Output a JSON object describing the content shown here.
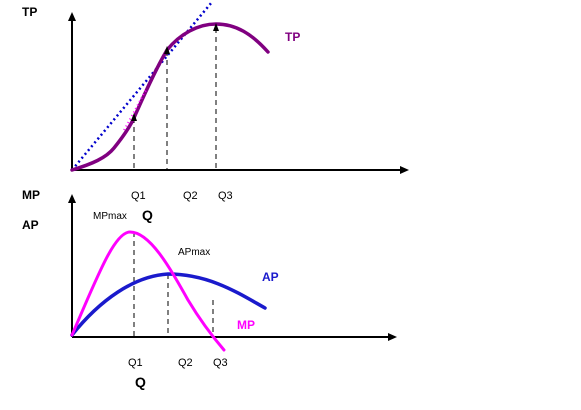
{
  "top_panel": {
    "y_axis_label": "TP",
    "curve_label": "TP",
    "tick_labels": [
      "Q1",
      "Q2",
      "Q3"
    ],
    "axis_label": "Q"
  },
  "bottom_panel": {
    "y_axis_label_1": "MP",
    "y_axis_label_2": "AP",
    "mp_max_label": "MPmax",
    "ap_max_label": "APmax",
    "ap_curve_label": "AP",
    "mp_curve_label": "MP",
    "tick_labels": [
      "Q1",
      "Q2",
      "Q3"
    ],
    "axis_label": "Q"
  },
  "colors": {
    "tp": "#800080",
    "tp_dotted": "#ff00ff",
    "tangent": "#0000cc",
    "ap": "#1a1acc",
    "mp": "#ff00ff",
    "axis": "#000000"
  }
}
